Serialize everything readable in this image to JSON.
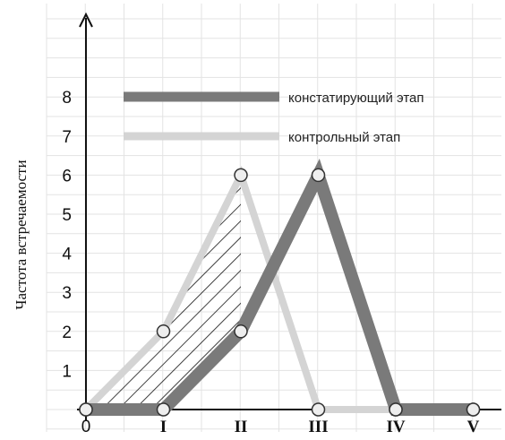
{
  "chart_data": {
    "type": "line",
    "categories": [
      "0",
      "I",
      "II",
      "III",
      "IV",
      "V"
    ],
    "ylabel": "Частота встречаемости",
    "xlabel": "",
    "ylim": [
      0,
      8
    ],
    "yticks": [
      "1",
      "2",
      "3",
      "4",
      "5",
      "6",
      "7",
      "8"
    ],
    "grid": true,
    "legend_position": "top-left",
    "series": [
      {
        "name": "констатирующий этап",
        "color": "#7a7a7a",
        "values": [
          0,
          0,
          2,
          6,
          0,
          0
        ]
      },
      {
        "name": "контрольный этап",
        "color": "#d4d4d4",
        "values": [
          0,
          2,
          6,
          0,
          0,
          0
        ]
      }
    ],
    "annotations": [
      "hatched area between series from 0 to II"
    ]
  }
}
